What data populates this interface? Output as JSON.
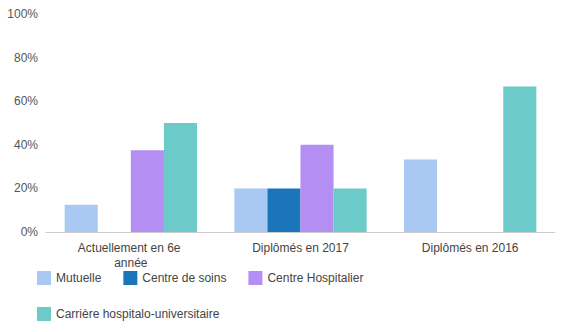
{
  "chart_data": {
    "type": "bar",
    "categories": [
      "Actuellement en 6e année",
      "Diplômés en 2017",
      "Diplômés en 2016"
    ],
    "series": [
      {
        "name": "Mutuelle",
        "color": "#a9c9f2",
        "values": [
          12.5,
          20,
          33.3
        ]
      },
      {
        "name": "Centre de soins",
        "color": "#1b75bb",
        "values": [
          0,
          20,
          0
        ]
      },
      {
        "name": "Centre Hospitalier",
        "color": "#b48ef3",
        "values": [
          37.5,
          40,
          0
        ]
      },
      {
        "name": "Carrière hospitalo-universitaire",
        "color": "#6ccbc8",
        "values": [
          50,
          20,
          66.7
        ]
      }
    ],
    "ylim": [
      0,
      100
    ],
    "yticks": [
      {
        "value": 0,
        "label": "0%"
      },
      {
        "value": 20,
        "label": "20%"
      },
      {
        "value": 40,
        "label": "40%"
      },
      {
        "value": 60,
        "label": "60%"
      },
      {
        "value": 80,
        "label": "80%"
      },
      {
        "value": 100,
        "label": "100%"
      }
    ],
    "grid": false,
    "legend": "bottom-left"
  }
}
